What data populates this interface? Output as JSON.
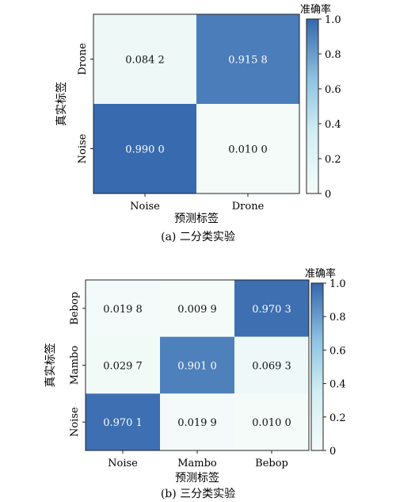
{
  "chart_data": [
    {
      "type": "heatmap",
      "x_categories": [
        "Noise",
        "Drone"
      ],
      "y_categories": [
        "Drone",
        "Noise"
      ],
      "values": [
        [
          0.0842,
          0.9158
        ],
        [
          0.99,
          0.01
        ]
      ],
      "cell_labels": [
        [
          "0.084 2",
          "0.915 8"
        ],
        [
          "0.990 0",
          "0.010 0"
        ]
      ],
      "xlabel": "预测标签",
      "ylabel": "真实标签",
      "colorbar_label": "准确率",
      "colorbar_range": [
        0,
        1
      ],
      "colorbar_ticks": [
        "0",
        "0.2",
        "0.4",
        "0.6",
        "0.8",
        "1.0"
      ],
      "caption": "(a) 二分类实验"
    },
    {
      "type": "heatmap",
      "x_categories": [
        "Noise",
        "Mambo",
        "Bebop"
      ],
      "y_categories": [
        "Bebop",
        "Mambo",
        "Noise"
      ],
      "values": [
        [
          0.0198,
          0.0099,
          0.9703
        ],
        [
          0.0297,
          0.901,
          0.0693
        ],
        [
          0.9701,
          0.0199,
          0.01
        ]
      ],
      "cell_labels": [
        [
          "0.019 8",
          "0.009 9",
          "0.970 3"
        ],
        [
          "0.029 7",
          "0.901 0",
          "0.069 3"
        ],
        [
          "0.970 1",
          "0.019 9",
          "0.010 0"
        ]
      ],
      "xlabel": "预测标签",
      "ylabel": "真实标签",
      "colorbar_label": "准确率",
      "colorbar_range": [
        0,
        1
      ],
      "colorbar_ticks": [
        "0",
        "0.2",
        "0.4",
        "0.6",
        "0.8",
        "1.0"
      ],
      "caption": "(b) 三分类实验"
    }
  ]
}
